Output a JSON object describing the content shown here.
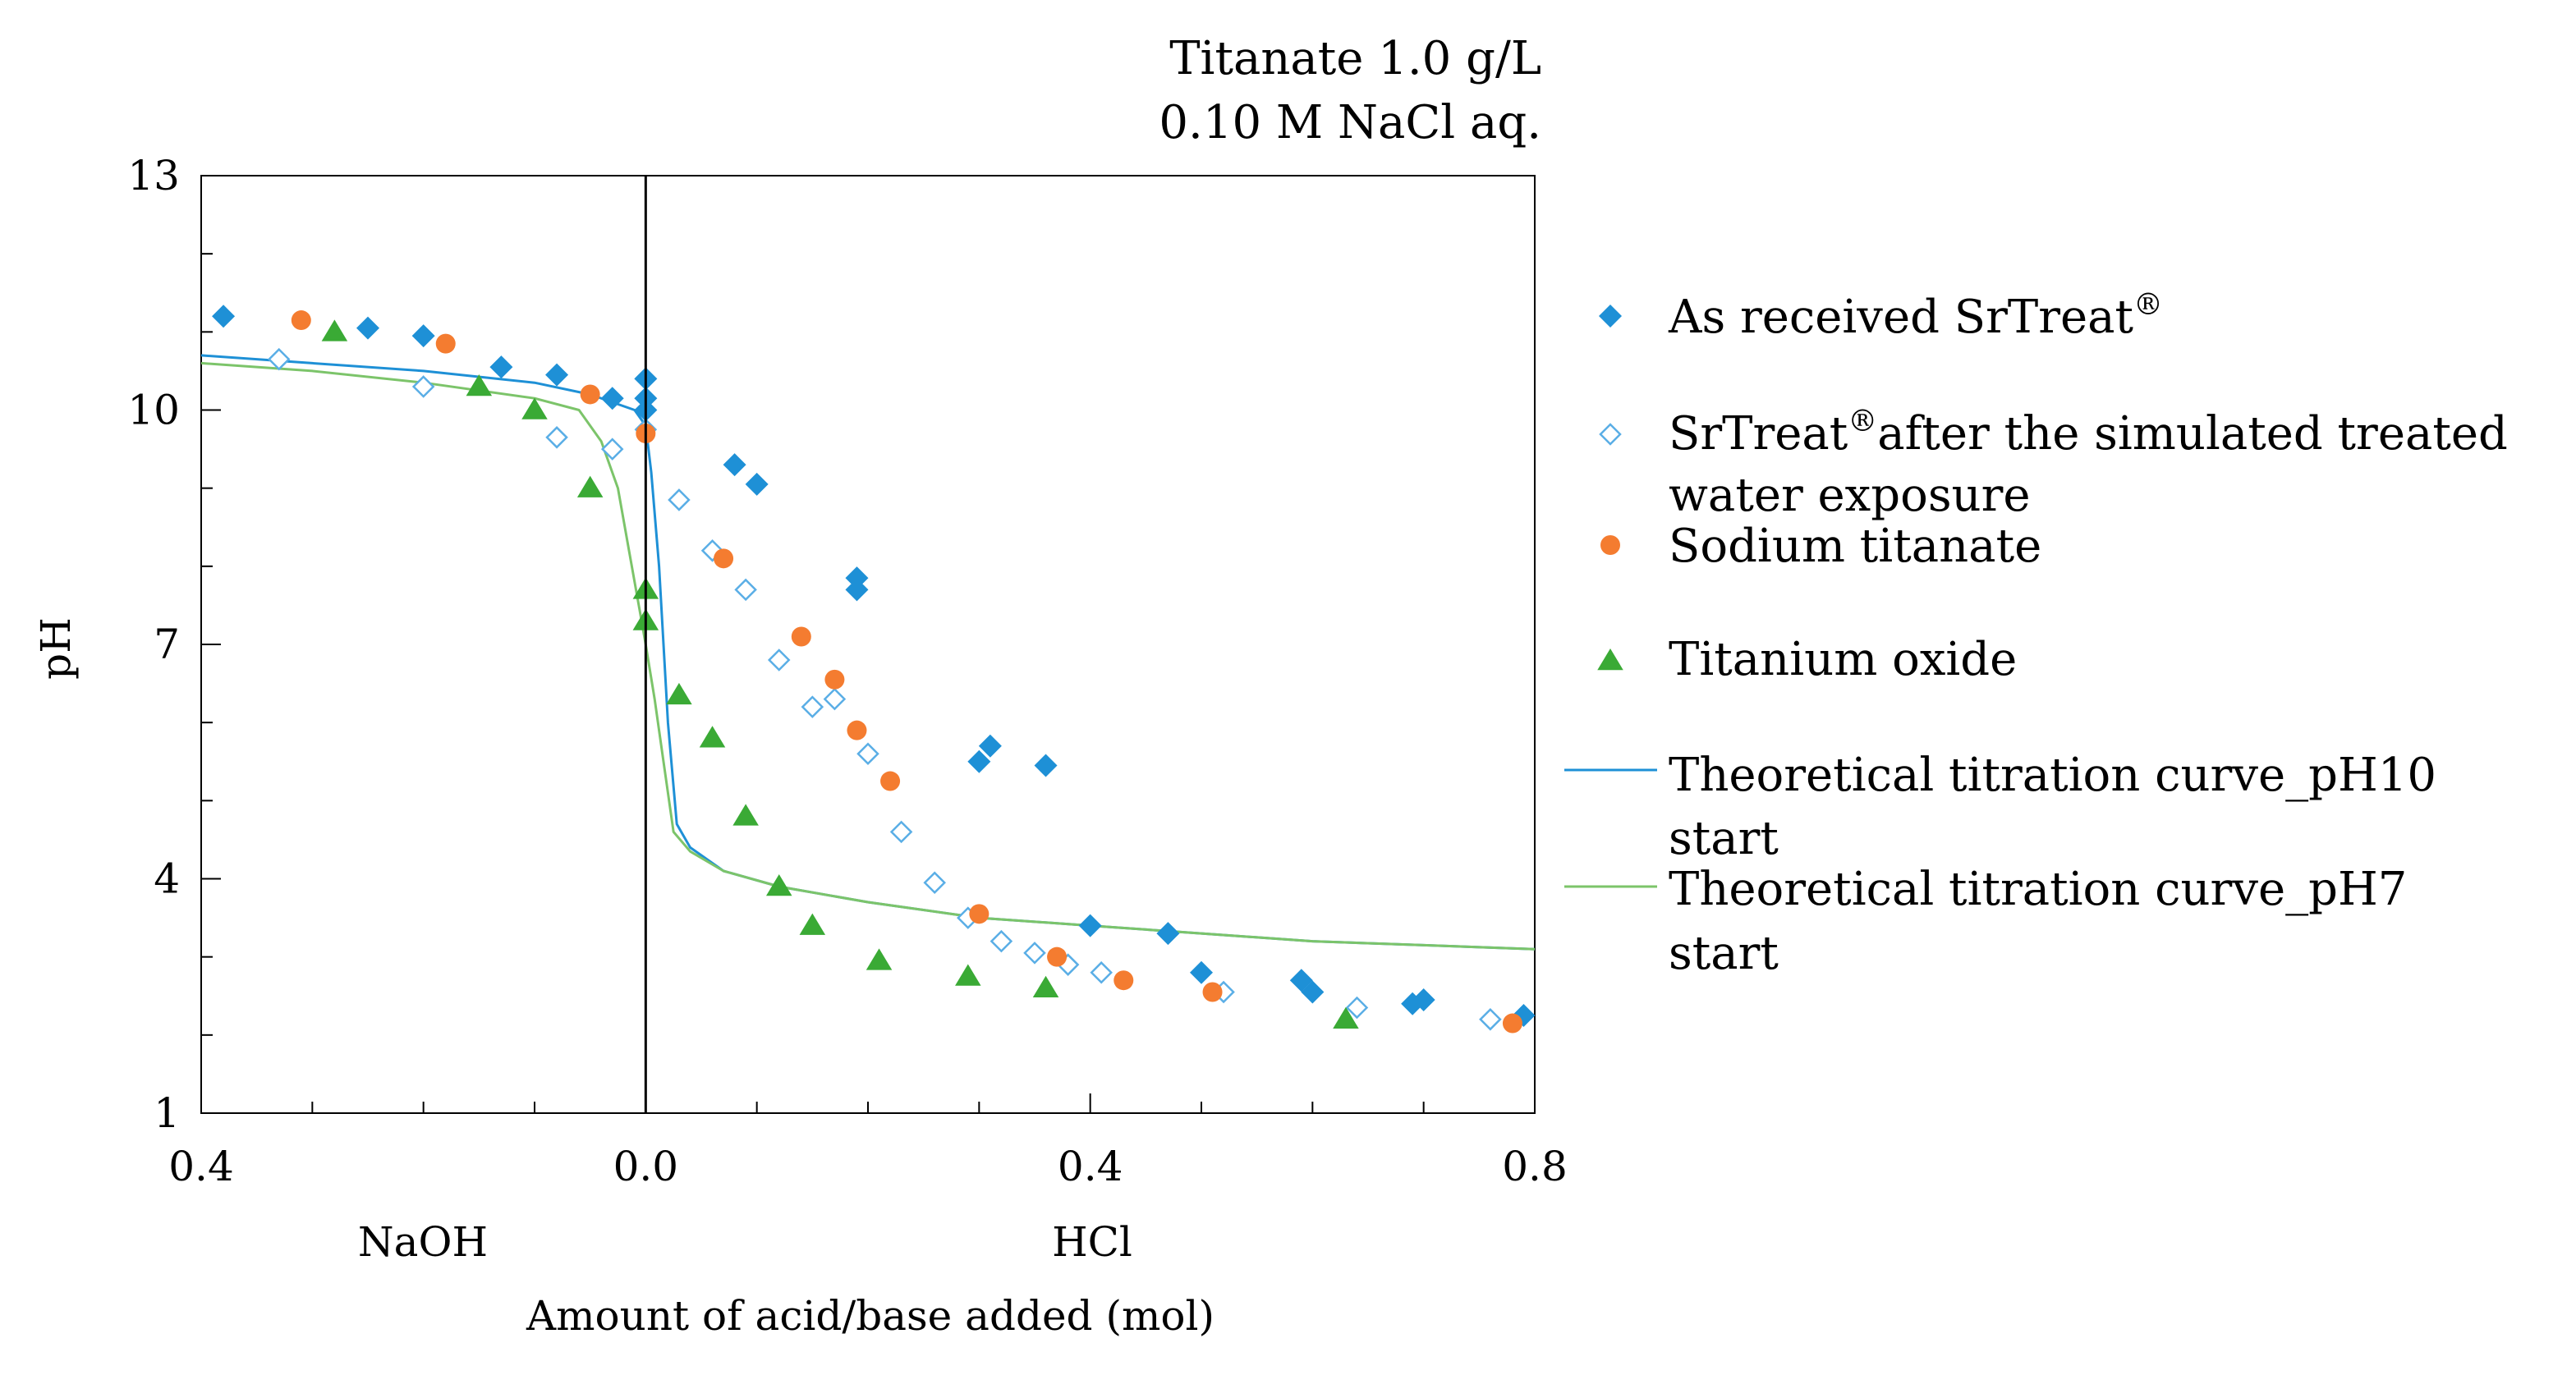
{
  "chart_data": {
    "type": "scatter",
    "annotations": [
      "Titanate 1.0 g/L",
      "0.10 M NaCl aq."
    ],
    "xlabel": "Amount of acid/base added (mol)",
    "ylabel": "pH",
    "x_sublabels": {
      "left": "NaOH",
      "right": "HCl"
    },
    "xlim": [
      -0.4,
      0.8
    ],
    "ylim": [
      1,
      13
    ],
    "x_ticks": [
      -0.4,
      0.0,
      0.4,
      0.8
    ],
    "x_tick_labels": [
      "0.4",
      "0.0",
      "0.4",
      "0.8"
    ],
    "y_ticks": [
      1,
      4,
      7,
      10,
      13
    ],
    "y_tick_labels": [
      "1",
      "4",
      "7",
      "10",
      "13"
    ],
    "zero_line_x": 0.0,
    "grid": false,
    "legend_position": "right",
    "colors": {
      "blue": "#1e90d6",
      "orange": "#f47c30",
      "green": "#3aaa35",
      "light_blue": "#5aaee6",
      "green_line": "#7cc46a"
    },
    "series": [
      {
        "name": "As received SrTreat",
        "superscript": "®",
        "marker": "diamond-filled",
        "color": "#1e90d6",
        "points": [
          [
            -0.38,
            11.2
          ],
          [
            -0.25,
            11.05
          ],
          [
            -0.2,
            10.95
          ],
          [
            -0.13,
            10.55
          ],
          [
            -0.08,
            10.45
          ],
          [
            -0.03,
            10.15
          ],
          [
            0.0,
            10.4
          ],
          [
            0.0,
            10.15
          ],
          [
            0.0,
            10.0
          ],
          [
            0.08,
            9.3
          ],
          [
            0.1,
            9.05
          ],
          [
            0.19,
            7.85
          ],
          [
            0.19,
            7.7
          ],
          [
            0.3,
            5.5
          ],
          [
            0.31,
            5.7
          ],
          [
            0.36,
            5.45
          ],
          [
            0.4,
            3.4
          ],
          [
            0.47,
            3.3
          ],
          [
            0.5,
            2.8
          ],
          [
            0.59,
            2.7
          ],
          [
            0.6,
            2.55
          ],
          [
            0.69,
            2.4
          ],
          [
            0.7,
            2.45
          ],
          [
            0.79,
            2.25
          ]
        ]
      },
      {
        "name": "SrTreat",
        "superscript": "®",
        "name_tail": "after the simulated treated",
        "name_line2": "water exposure",
        "marker": "diamond-open",
        "color": "#5aaee6",
        "points": [
          [
            -0.33,
            10.65
          ],
          [
            -0.2,
            10.3
          ],
          [
            -0.08,
            9.65
          ],
          [
            -0.03,
            9.5
          ],
          [
            0.0,
            9.75
          ],
          [
            0.03,
            8.85
          ],
          [
            0.06,
            8.2
          ],
          [
            0.09,
            7.7
          ],
          [
            0.12,
            6.8
          ],
          [
            0.15,
            6.2
          ],
          [
            0.17,
            6.3
          ],
          [
            0.2,
            5.6
          ],
          [
            0.23,
            4.6
          ],
          [
            0.26,
            3.95
          ],
          [
            0.29,
            3.5
          ],
          [
            0.32,
            3.2
          ],
          [
            0.35,
            3.05
          ],
          [
            0.38,
            2.9
          ],
          [
            0.41,
            2.8
          ],
          [
            0.52,
            2.55
          ],
          [
            0.64,
            2.35
          ],
          [
            0.76,
            2.2
          ]
        ]
      },
      {
        "name": "Sodium titanate",
        "marker": "circle",
        "color": "#f47c30",
        "points": [
          [
            -0.31,
            11.15
          ],
          [
            -0.18,
            10.85
          ],
          [
            -0.05,
            10.2
          ],
          [
            0.0,
            9.7
          ],
          [
            0.07,
            8.1
          ],
          [
            0.14,
            7.1
          ],
          [
            0.17,
            6.55
          ],
          [
            0.19,
            5.9
          ],
          [
            0.22,
            5.25
          ],
          [
            0.3,
            3.55
          ],
          [
            0.37,
            3.0
          ],
          [
            0.43,
            2.7
          ],
          [
            0.51,
            2.55
          ],
          [
            0.78,
            2.15
          ]
        ]
      },
      {
        "name": "Titanium oxide",
        "marker": "triangle",
        "color": "#3aaa35",
        "points": [
          [
            -0.28,
            11.0
          ],
          [
            -0.15,
            10.3
          ],
          [
            -0.1,
            10.0
          ],
          [
            -0.05,
            9.0
          ],
          [
            0.0,
            7.7
          ],
          [
            0.0,
            7.3
          ],
          [
            0.03,
            6.35
          ],
          [
            0.06,
            5.8
          ],
          [
            0.09,
            4.8
          ],
          [
            0.12,
            3.9
          ],
          [
            0.15,
            3.4
          ],
          [
            0.21,
            2.95
          ],
          [
            0.29,
            2.75
          ],
          [
            0.36,
            2.6
          ],
          [
            0.63,
            2.2
          ]
        ]
      },
      {
        "name": "Theoretical titration curve_pH10",
        "name_line2": "start",
        "marker": "line",
        "color": "#1e90d6",
        "points": [
          [
            -0.4,
            10.7
          ],
          [
            -0.3,
            10.6
          ],
          [
            -0.2,
            10.5
          ],
          [
            -0.1,
            10.35
          ],
          [
            -0.05,
            10.2
          ],
          [
            -0.01,
            10.0
          ],
          [
            0.0,
            9.8
          ],
          [
            0.005,
            9.2
          ],
          [
            0.012,
            8.0
          ],
          [
            0.02,
            6.0
          ],
          [
            0.028,
            4.7
          ],
          [
            0.04,
            4.4
          ],
          [
            0.07,
            4.1
          ],
          [
            0.12,
            3.9
          ],
          [
            0.2,
            3.7
          ],
          [
            0.3,
            3.5
          ],
          [
            0.4,
            3.4
          ],
          [
            0.5,
            3.3
          ],
          [
            0.6,
            3.2
          ],
          [
            0.7,
            3.15
          ],
          [
            0.8,
            3.1
          ]
        ]
      },
      {
        "name": "Theoretical titration curve_pH7",
        "name_line2": "start",
        "marker": "line",
        "color": "#7cc46a",
        "points": [
          [
            -0.4,
            10.6
          ],
          [
            -0.3,
            10.5
          ],
          [
            -0.2,
            10.35
          ],
          [
            -0.1,
            10.15
          ],
          [
            -0.06,
            10.0
          ],
          [
            -0.04,
            9.6
          ],
          [
            -0.025,
            9.0
          ],
          [
            -0.015,
            8.2
          ],
          [
            -0.005,
            7.4
          ],
          [
            0.0,
            7.0
          ],
          [
            0.008,
            6.3
          ],
          [
            0.016,
            5.5
          ],
          [
            0.025,
            4.6
          ],
          [
            0.04,
            4.35
          ],
          [
            0.07,
            4.1
          ],
          [
            0.12,
            3.9
          ],
          [
            0.2,
            3.7
          ],
          [
            0.3,
            3.5
          ],
          [
            0.4,
            3.4
          ],
          [
            0.5,
            3.3
          ],
          [
            0.6,
            3.2
          ],
          [
            0.7,
            3.15
          ],
          [
            0.8,
            3.1
          ]
        ]
      }
    ]
  }
}
